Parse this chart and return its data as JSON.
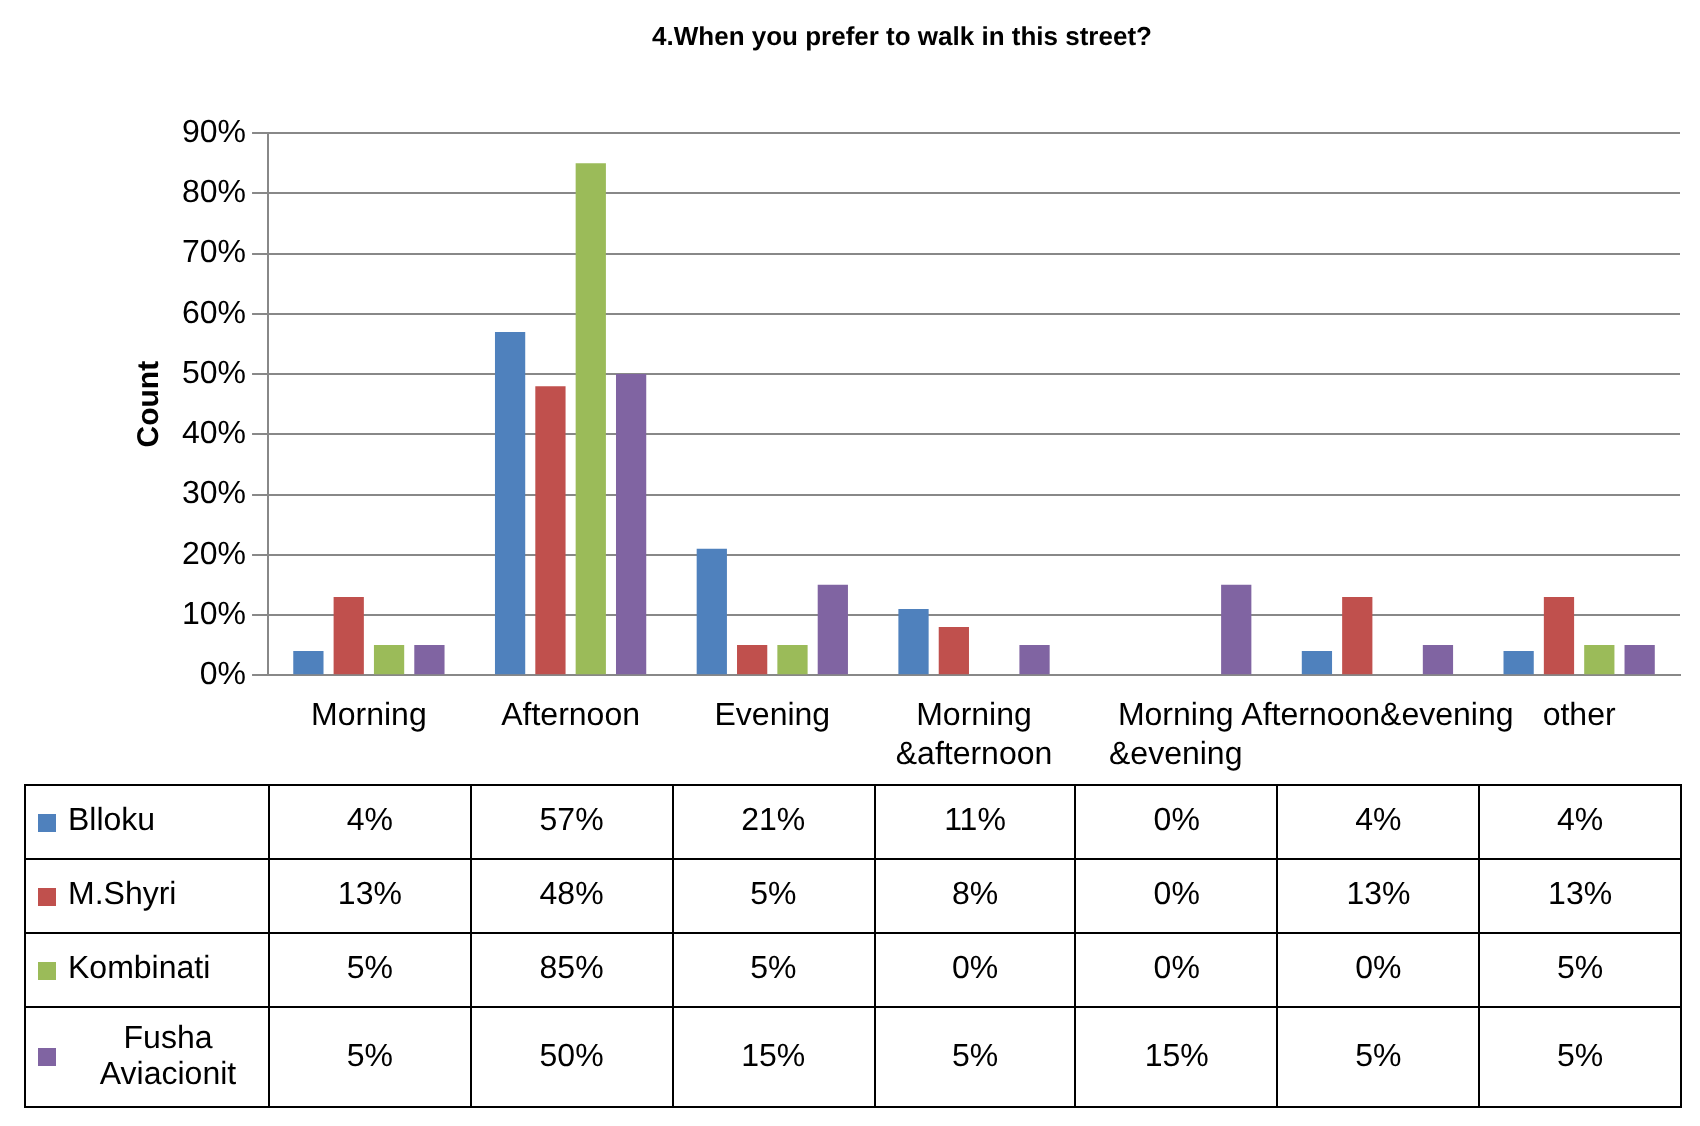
{
  "chart_data": {
    "type": "bar",
    "title": "4.When you prefer to walk in this street?",
    "ylabel": "Count",
    "categories": [
      "Morning",
      "Afternoon",
      "Evening",
      "Morning &afternoon",
      "Morning &evening",
      "Afternoon&evening",
      "other"
    ],
    "series": [
      {
        "name": "Blloku",
        "color": "#4f81bd",
        "values": [
          4,
          57,
          21,
          11,
          0,
          4,
          4
        ],
        "value_labels": [
          "4%",
          "57%",
          "21%",
          "11%",
          "0%",
          "4%",
          "4%"
        ]
      },
      {
        "name": "M.Shyri",
        "color": "#c0504d",
        "values": [
          13,
          48,
          5,
          8,
          0,
          13,
          13
        ],
        "value_labels": [
          "13%",
          "48%",
          "5%",
          "8%",
          "0%",
          "13%",
          "13%"
        ]
      },
      {
        "name": "Kombinati",
        "color": "#9bbb59",
        "values": [
          5,
          85,
          5,
          0,
          0,
          0,
          5
        ],
        "value_labels": [
          "5%",
          "85%",
          "5%",
          "0%",
          "0%",
          "0%",
          "5%"
        ]
      },
      {
        "name": "Fusha Aviacionit",
        "color": "#8064a2",
        "values": [
          5,
          50,
          15,
          5,
          15,
          5,
          5
        ],
        "value_labels": [
          "5%",
          "50%",
          "15%",
          "5%",
          "15%",
          "5%",
          "5%"
        ]
      }
    ],
    "ylim": [
      0,
      90
    ],
    "yticks": [
      {
        "value": 0,
        "label": "0%"
      },
      {
        "value": 10,
        "label": "10%"
      },
      {
        "value": 20,
        "label": "20%"
      },
      {
        "value": 30,
        "label": "30%"
      },
      {
        "value": 40,
        "label": "40%"
      },
      {
        "value": 50,
        "label": "50%"
      },
      {
        "value": 60,
        "label": "60%"
      },
      {
        "value": 70,
        "label": "70%"
      },
      {
        "value": 80,
        "label": "80%"
      },
      {
        "value": 90,
        "label": "90%"
      }
    ],
    "grid": "y",
    "legend": "bottom left"
  }
}
